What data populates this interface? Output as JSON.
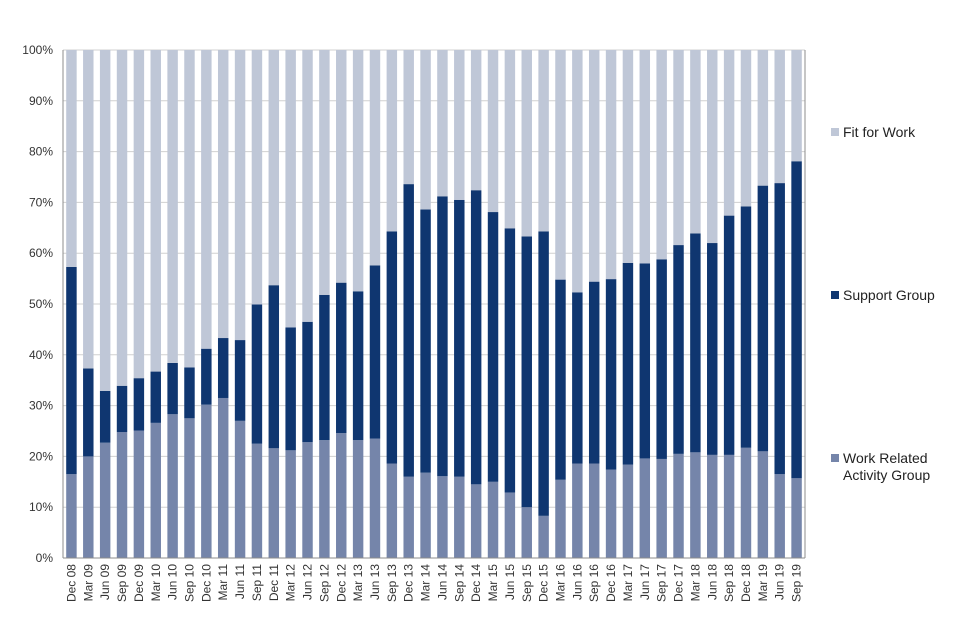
{
  "chart_data": {
    "type": "bar",
    "stacked": true,
    "percent": true,
    "ylim": [
      0,
      100
    ],
    "yticks": [
      "0%",
      "10%",
      "20%",
      "30%",
      "40%",
      "50%",
      "60%",
      "70%",
      "80%",
      "90%",
      "100%"
    ],
    "grid": true,
    "legend_position": "right",
    "categories": [
      "Dec 08",
      "Mar 09",
      "Jun 09",
      "Sep 09",
      "Dec 09",
      "Mar 10",
      "Jun 10",
      "Sep 10",
      "Dec 10",
      "Mar 11",
      "Jun 11",
      "Sep 11",
      "Dec 11",
      "Mar 12",
      "Jun 12",
      "Sep 12",
      "Dec 12",
      "Mar 13",
      "Jun 13",
      "Sep 13",
      "Dec 13",
      "Mar 14",
      "Jun 14",
      "Sep 14",
      "Dec 14",
      "Mar 15",
      "Jun 15",
      "Sep 15",
      "Dec 15",
      "Mar 16",
      "Jun 16",
      "Sep 16",
      "Dec 16",
      "Mar 17",
      "Jun 17",
      "Sep 17",
      "Dec 17",
      "Mar 18",
      "Jun 18",
      "Sep 18",
      "Dec 18",
      "Mar 19",
      "Jun 19",
      "Sep 19"
    ],
    "series": [
      {
        "name": "Work Related Activity Group",
        "color": "#7585aa",
        "values": [
          16.5,
          20,
          22.7,
          24.8,
          25.1,
          26.6,
          28.3,
          27.5,
          30.2,
          31.5,
          27,
          22.5,
          21.6,
          21.2,
          22.8,
          23.2,
          24.6,
          23.2,
          23.5,
          18.6,
          16,
          16.8,
          16.1,
          16,
          14.5,
          15,
          12.9,
          10,
          8.3,
          15.4,
          18.6,
          18.6,
          17.4,
          18.4,
          19.6,
          19.5,
          20.5,
          20.8,
          20.3,
          20.3,
          21.7,
          21,
          16.5,
          15.7
        ]
      },
      {
        "name": "Support Group",
        "color": "#0f3670",
        "values": [
          40.8,
          17.3,
          10.2,
          9.1,
          10.3,
          10.1,
          10.1,
          10,
          11,
          11.8,
          15.9,
          27.4,
          32.1,
          24.2,
          23.7,
          28.6,
          29.6,
          29.3,
          34.1,
          45.7,
          57.6,
          51.8,
          55.1,
          54.5,
          57.9,
          53.1,
          52,
          53.3,
          56,
          39.4,
          33.7,
          35.8,
          37.5,
          39.7,
          38.4,
          39.3,
          41.1,
          43.1,
          41.7,
          47.1,
          47.5,
          52.3,
          57.3,
          62.4
        ]
      },
      {
        "name": "Fit for Work",
        "color": "#bfc7d7",
        "values": [
          42.7,
          62.7,
          67.1,
          66.1,
          64.6,
          63.3,
          61.6,
          62.5,
          58.8,
          56.7,
          57.1,
          50.1,
          46.3,
          54.6,
          53.5,
          48.2,
          45.8,
          47.5,
          42.4,
          35.7,
          26.4,
          31.4,
          28.8,
          29.5,
          27.6,
          31.9,
          35.1,
          36.7,
          35.7,
          45.2,
          47.7,
          45.6,
          45.1,
          41.9,
          42,
          41.2,
          38.4,
          36.1,
          38,
          32.6,
          30.8,
          26.7,
          26.2,
          21.9
        ]
      }
    ],
    "legend": [
      {
        "series": 2,
        "lines": [
          "Fit for Work"
        ]
      },
      {
        "series": 1,
        "lines": [
          "Support Group"
        ]
      },
      {
        "series": 0,
        "lines": [
          "Work Related",
          "Activity Group"
        ]
      }
    ],
    "colors": {
      "grid": "#d0d0d0",
      "axis": "#8c8c8c",
      "text": "#333333"
    }
  }
}
